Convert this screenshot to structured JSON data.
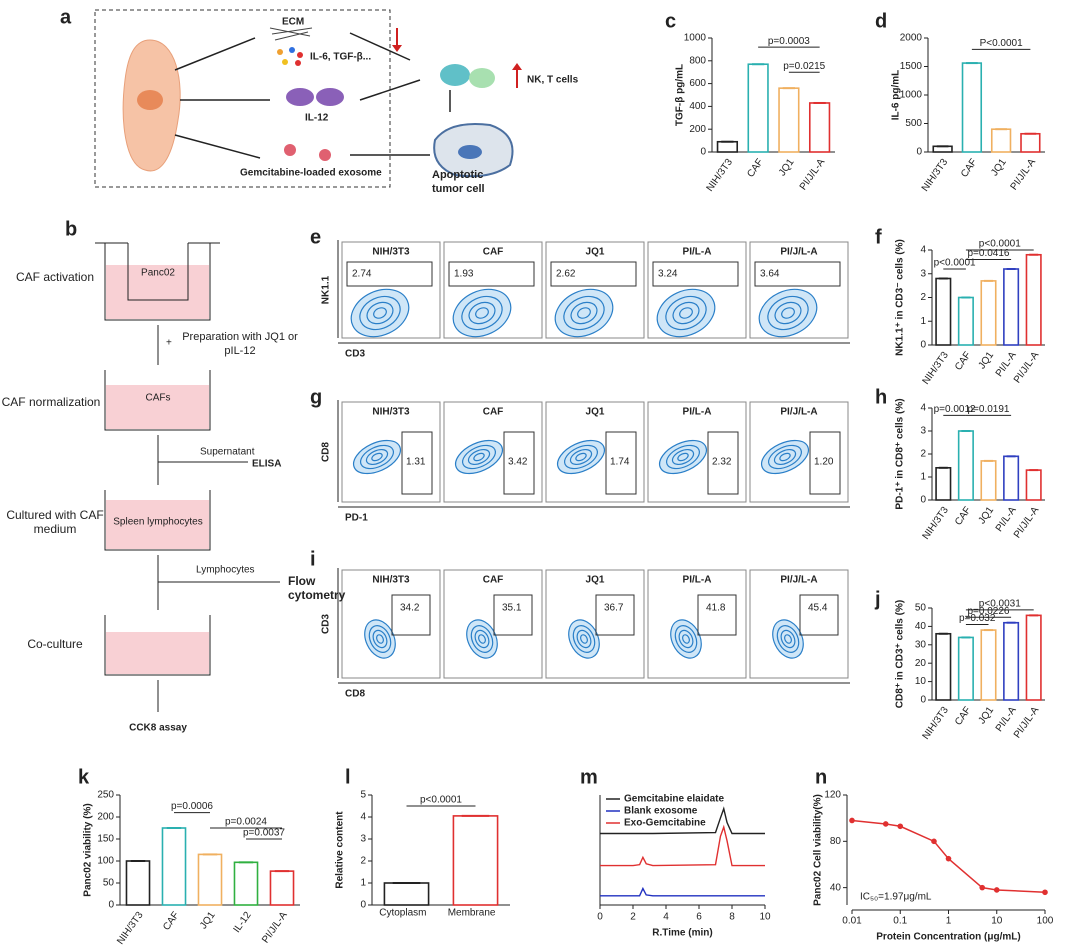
{
  "panel_labels": [
    "a",
    "b",
    "c",
    "d",
    "e",
    "f",
    "g",
    "h",
    "i",
    "j",
    "k",
    "l",
    "m",
    "n"
  ],
  "diagram_a": {
    "ecm": "ECM",
    "cytokines": "IL-6, TGF-β...",
    "il12": "IL-12",
    "exosome": "Gemcitabine-loaded exosome",
    "immune": "NK, T cells",
    "tumor": "Apoptotic tumor cell"
  },
  "diagram_b": {
    "panc02": "Panc02",
    "activation": "CAF activation",
    "plus": "+",
    "preparation": "Preparation with JQ1 or pIL-12",
    "cafs": "CAFs",
    "normalization": "CAF normalization",
    "supernatant": "Supernatant",
    "elisa": "ELISA",
    "spleen": "Spleen lymphocytes",
    "cultured": "Cultured with CAF medium",
    "lymphocytes": "Lymphocytes",
    "flow": "Flow cytometry",
    "coculture": "Co-culture",
    "cck8": "CCK8 assay"
  },
  "flow": [
    {
      "y_label": "NK1.1",
      "x_label": "CD3",
      "groups": [
        "NIH/3T3",
        "CAF",
        "JQ1",
        "PI/L-A",
        "PI/J/L-A"
      ],
      "gates": [
        "2.74",
        "1.93",
        "2.62",
        "3.24",
        "3.64"
      ]
    },
    {
      "y_label": "CD8",
      "x_label": "PD-1",
      "groups": [
        "NIH/3T3",
        "CAF",
        "JQ1",
        "PI/L-A",
        "PI/J/L-A"
      ],
      "gates": [
        "1.31",
        "3.42",
        "1.74",
        "2.32",
        "1.20"
      ]
    },
    {
      "y_label": "CD3",
      "x_label": "CD8",
      "groups": [
        "NIH/3T3",
        "CAF",
        "JQ1",
        "PI/L-A",
        "PI/J/L-A"
      ],
      "gates": [
        "34.2",
        "35.1",
        "36.7",
        "41.8",
        "45.4"
      ]
    }
  ],
  "chart_data": [
    {
      "type": "bar",
      "ylabel": "TGF-β pg/mL",
      "categories": [
        "NIH/3T3",
        "CAF",
        "JQ1",
        "PI/J/L-A"
      ],
      "values": [
        90,
        770,
        560,
        430
      ],
      "colors": [
        "#222222",
        "#2ab0b0",
        "#f0b060",
        "#e03030"
      ],
      "ylim": [
        0,
        1000
      ],
      "yticks": [
        0,
        200,
        400,
        600,
        800,
        1000
      ],
      "annotations": [
        "p=0.0003",
        "p=0.0215"
      ]
    },
    {
      "type": "bar",
      "ylabel": "IL-6 pg/mL",
      "categories": [
        "NIH/3T3",
        "CAF",
        "JQ1",
        "PI/J/L-A"
      ],
      "values": [
        100,
        1560,
        400,
        320
      ],
      "colors": [
        "#222222",
        "#2ab0b0",
        "#f0b060",
        "#e03030"
      ],
      "ylim": [
        0,
        2000
      ],
      "yticks": [
        0,
        500,
        1000,
        1500,
        2000
      ],
      "annotations": [
        "P<0.0001"
      ]
    },
    {
      "type": "bar",
      "ylabel": "NK1.1⁺ in CD3⁻ cells (%)",
      "categories": [
        "NIH/3T3",
        "CAF",
        "JQ1",
        "PI/L-A",
        "PI/J/L-A"
      ],
      "values": [
        2.8,
        2.0,
        2.7,
        3.2,
        3.8
      ],
      "colors": [
        "#222222",
        "#2ab0b0",
        "#f0b060",
        "#3040c0",
        "#e03030"
      ],
      "ylim": [
        0,
        4
      ],
      "yticks": [
        0,
        1,
        2,
        3,
        4
      ],
      "annotations": [
        "p<0.0001",
        "p=0.0416",
        "p<0.0001"
      ]
    },
    {
      "type": "bar",
      "ylabel": "PD-1⁺ in CD8⁺ cells (%)",
      "categories": [
        "NIH/3T3",
        "CAF",
        "JQ1",
        "PI/L-A",
        "PI/J/L-A"
      ],
      "values": [
        1.4,
        3.0,
        1.7,
        1.9,
        1.3
      ],
      "colors": [
        "#222222",
        "#2ab0b0",
        "#f0b060",
        "#3040c0",
        "#e03030"
      ],
      "ylim": [
        0,
        4
      ],
      "yticks": [
        0,
        1,
        2,
        3,
        4
      ],
      "annotations": [
        "p=0.0012",
        "p=0.0191"
      ]
    },
    {
      "type": "bar",
      "ylabel": "CD8⁺ in CD3⁺ cells (%)",
      "categories": [
        "NIH/3T3",
        "CAF",
        "JQ1",
        "PI/L-A",
        "PI/J/L-A"
      ],
      "values": [
        36,
        34,
        38,
        42,
        46
      ],
      "colors": [
        "#222222",
        "#2ab0b0",
        "#f0b060",
        "#3040c0",
        "#e03030"
      ],
      "ylim": [
        0,
        50
      ],
      "yticks": [
        0,
        10,
        20,
        30,
        40,
        50
      ],
      "annotations": [
        "p=0.032",
        "p=0.0226",
        "p<0.0031"
      ]
    },
    {
      "type": "bar",
      "ylabel": "Panc02 viability (%)",
      "categories": [
        "NIH/3T3",
        "CAF",
        "JQ1",
        "IL-12",
        "PI/J/L-A"
      ],
      "values": [
        100,
        175,
        115,
        97,
        77
      ],
      "colors": [
        "#222222",
        "#2ab0b0",
        "#f0b060",
        "#30b040",
        "#e03030"
      ],
      "ylim": [
        0,
        250
      ],
      "yticks": [
        0,
        50,
        100,
        150,
        200,
        250
      ],
      "annotations": [
        "p=0.0006",
        "p=0.0024",
        "p=0.0037"
      ]
    },
    {
      "type": "bar",
      "ylabel": "Relative content",
      "categories": [
        "Cytoplasm",
        "Membrane"
      ],
      "values": [
        1.0,
        4.05
      ],
      "colors": [
        "#222222",
        "#e03030"
      ],
      "ylim": [
        0,
        5
      ],
      "yticks": [
        0,
        1,
        2,
        3,
        4,
        5
      ],
      "annotations": [
        "p<0.0001"
      ]
    },
    {
      "type": "line",
      "xlabel": "R.Time (min)",
      "x": [
        0,
        2,
        2.4,
        2.6,
        2.8,
        3.2,
        7,
        7.3,
        7.5,
        7.7,
        8,
        10
      ],
      "xlim": [
        0,
        10
      ],
      "xticks": [
        0,
        2,
        4,
        6,
        8,
        10
      ],
      "ylim": [
        0,
        12
      ],
      "series": [
        {
          "name": "Gemcitabine elaidate",
          "color": "#222222",
          "values": [
            7.8,
            7.8,
            7.8,
            7.8,
            7.8,
            7.8,
            7.9,
            9.5,
            10.5,
            9,
            7.8,
            7.8
          ]
        },
        {
          "name": "Blank exosome",
          "color": "#2030c0",
          "values": [
            1,
            1,
            1,
            1.8,
            1.1,
            1,
            1,
            1,
            1,
            1,
            1,
            1
          ]
        },
        {
          "name": "Exo-Gemcitabine",
          "color": "#e03030",
          "values": [
            4.3,
            4.3,
            4.4,
            5.2,
            4.5,
            4.3,
            4.4,
            7.5,
            8.5,
            7,
            4.3,
            4.3
          ]
        }
      ]
    },
    {
      "type": "scatter",
      "xlabel": "Protein Concentration (μg/mL)",
      "ylabel": "Panc02 Cell viability(%)",
      "x": [
        0.01,
        0.05,
        0.1,
        0.5,
        1,
        5,
        10,
        100
      ],
      "values": [
        98,
        95,
        93,
        80,
        65,
        40,
        38,
        36
      ],
      "color": "#e03030",
      "log_x": true,
      "xlim": [
        0.01,
        100
      ],
      "xticks": [
        0.01,
        0.1,
        1,
        10,
        100
      ],
      "ylim": [
        25,
        120
      ],
      "yticks": [
        40,
        80,
        120
      ],
      "annotations": [
        "IC₅₀=1.97μg/mL"
      ]
    }
  ]
}
